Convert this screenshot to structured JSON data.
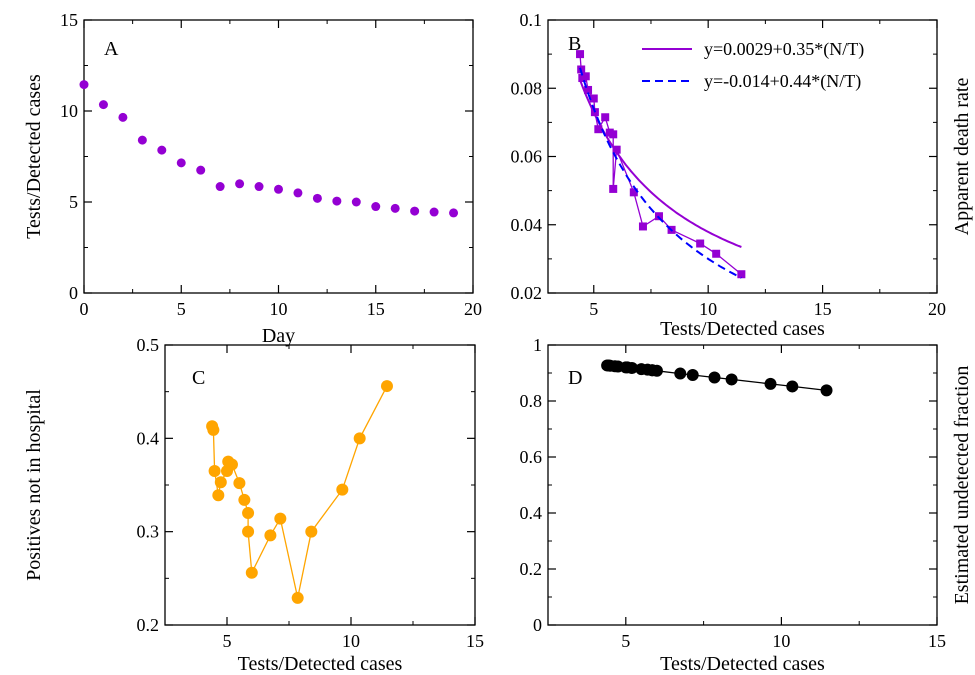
{
  "chart_data": [
    {
      "panel_label": "A",
      "type": "scatter",
      "xlabel": "Day",
      "ylabel": "Tests/Detected cases",
      "xlim": [
        0,
        20
      ],
      "ylim": [
        0,
        15
      ],
      "xticks": [
        0,
        5,
        10,
        15,
        20
      ],
      "yticks": [
        0,
        5,
        10,
        15
      ],
      "color": "#9400d3",
      "series": [
        {
          "x": [
            0,
            1,
            2,
            3,
            4,
            5,
            6,
            7,
            8,
            9,
            10,
            11,
            12,
            13,
            14,
            15,
            16,
            17,
            18,
            19
          ],
          "y": [
            11.45,
            10.35,
            9.65,
            8.4,
            7.85,
            7.15,
            6.75,
            5.85,
            6.0,
            5.85,
            5.7,
            5.5,
            5.2,
            5.05,
            5.0,
            4.75,
            4.65,
            4.5,
            4.45,
            4.4
          ]
        }
      ]
    },
    {
      "panel_label": "B",
      "type": "line",
      "xlabel": "Tests/Detected cases",
      "ylabel": "Apparent death rate",
      "xlim": [
        3,
        20
      ],
      "ylim": [
        0.02,
        0.1
      ],
      "xticks": [
        5,
        10,
        15,
        20
      ],
      "yticks": [
        0.02,
        0.04,
        0.06,
        0.08,
        0.1
      ],
      "ytick_labels": [
        "0.02",
        "0.04",
        "0.06",
        "0.08",
        "0.1"
      ],
      "legend_position": "top-right",
      "series": [
        {
          "color": "#9400d3",
          "marker": "square",
          "x": [
            4.4,
            4.45,
            4.5,
            4.65,
            4.75,
            5.0,
            5.05,
            5.2,
            5.5,
            5.7,
            5.85,
            5.85,
            6.0,
            6.75,
            7.15,
            7.85,
            8.4,
            9.65,
            10.35,
            11.45
          ],
          "y": [
            0.09,
            0.0855,
            0.083,
            0.0835,
            0.0795,
            0.077,
            0.073,
            0.068,
            0.0715,
            0.067,
            0.0665,
            0.0505,
            0.062,
            0.0495,
            0.0395,
            0.0425,
            0.0385,
            0.0345,
            0.0315,
            0.0255
          ]
        },
        {
          "name": "y=0.0029+0.35*(N/T)",
          "color": "#9400d3",
          "dash": "solid",
          "fit": {
            "a": 0.0029,
            "b": 0.35
          },
          "x_range": [
            4.4,
            11.45
          ]
        },
        {
          "name": "y=-0.014+0.44*(N/T)",
          "color": "#0000ff",
          "dash": "dashed",
          "fit": {
            "a": -0.014,
            "b": 0.44
          },
          "x_range": [
            4.4,
            11.45
          ]
        }
      ]
    },
    {
      "panel_label": "C",
      "type": "line",
      "xlabel": "Tests/Detected cases",
      "ylabel": "Positives not in hospital",
      "xlim": [
        2.5,
        15
      ],
      "ylim": [
        0.2,
        0.5
      ],
      "xticks": [
        5,
        10,
        15
      ],
      "yticks": [
        0.2,
        0.3,
        0.4,
        0.5
      ],
      "color": "#ffa500",
      "series": [
        {
          "x": [
            4.4,
            4.45,
            4.5,
            4.65,
            4.75,
            5.0,
            5.05,
            5.2,
            5.5,
            5.7,
            5.85,
            5.85,
            6.0,
            6.75,
            7.15,
            7.85,
            8.4,
            9.65,
            10.35,
            11.45
          ],
          "y": [
            0.413,
            0.409,
            0.365,
            0.339,
            0.353,
            0.365,
            0.375,
            0.372,
            0.352,
            0.334,
            0.32,
            0.3,
            0.256,
            0.296,
            0.314,
            0.229,
            0.3,
            0.345,
            0.4,
            0.456
          ]
        }
      ]
    },
    {
      "panel_label": "D",
      "type": "line",
      "xlabel": "Tests/Detected cases",
      "ylabel": "Estimated undetected fraction",
      "xlim": [
        2.5,
        15
      ],
      "ylim": [
        0,
        1
      ],
      "xticks": [
        5,
        10,
        15
      ],
      "yticks": [
        0,
        0.2,
        0.4,
        0.6,
        0.8,
        1
      ],
      "ytick_labels": [
        "0",
        "0.2",
        "0.4",
        "0.6",
        "0.8",
        "1"
      ],
      "color": "#000000",
      "series": [
        {
          "x": [
            4.4,
            4.45,
            4.5,
            4.65,
            4.75,
            5.0,
            5.05,
            5.2,
            5.5,
            5.7,
            5.85,
            5.85,
            6.0,
            6.75,
            7.15,
            7.85,
            8.4,
            9.65,
            10.35,
            11.45
          ],
          "y": [
            0.927,
            0.927,
            0.926,
            0.924,
            0.923,
            0.92,
            0.92,
            0.918,
            0.914,
            0.912,
            0.91,
            0.91,
            0.908,
            0.898,
            0.893,
            0.884,
            0.877,
            0.861,
            0.852,
            0.838
          ]
        }
      ]
    }
  ]
}
